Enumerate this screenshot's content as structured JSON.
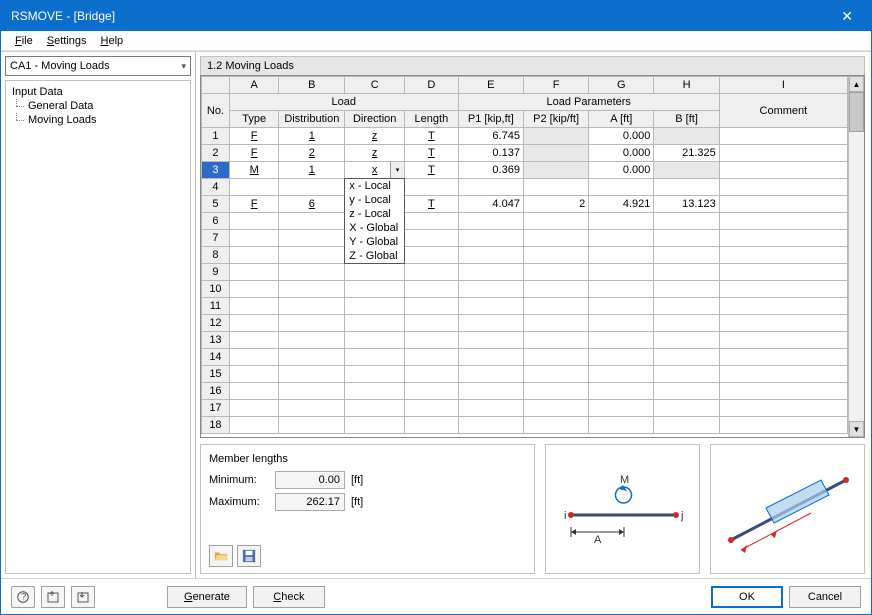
{
  "window": {
    "title": "RSMOVE - [Bridge]"
  },
  "menubar": {
    "file": "File",
    "settings": "Settings",
    "help": "Help"
  },
  "sidebar": {
    "combo": "CA1 - Moving Loads",
    "tree": {
      "root": "Input Data",
      "children": [
        "General Data",
        "Moving Loads"
      ]
    }
  },
  "panel": {
    "title": "1.2 Moving Loads"
  },
  "grid": {
    "col_letters": [
      "A",
      "B",
      "C",
      "D",
      "E",
      "F",
      "G",
      "H",
      "I"
    ],
    "group_headers": {
      "no": "No.",
      "load": "Load",
      "load_params": "Load Parameters",
      "comment": "Comment"
    },
    "col_headers": [
      "Type",
      "Distribution",
      "Direction",
      "Length",
      "P1 [kip,ft]",
      "P2 [kip/ft]",
      "A [ft]",
      "B [ft]",
      "Comment"
    ],
    "row_count": 18,
    "selected_row": 3,
    "rows": [
      {
        "type": "F",
        "dist": "1",
        "dir": "z",
        "len": "T",
        "p1": "6.745",
        "p2": "",
        "a": "0.000",
        "b": "",
        "comment": ""
      },
      {
        "type": "F",
        "dist": "2",
        "dir": "z",
        "len": "T",
        "p1": "0.137",
        "p2": "",
        "a": "0.000",
        "b": "21.325",
        "comment": ""
      },
      {
        "type": "M",
        "dist": "1",
        "dir": "x",
        "len": "T",
        "p1": "0.369",
        "p2": "",
        "a": "0.000",
        "b": "",
        "comment": ""
      },
      {},
      {
        "type": "F",
        "dist": "6",
        "dir": "",
        "len": "T",
        "p1": "4.047",
        "p2": "2",
        "a": "4.921",
        "b": "13.123",
        "comment": ""
      }
    ],
    "dropdown": {
      "open_row": 3,
      "open_col": "C",
      "options": [
        "x - Local",
        "y - Local",
        "z - Local",
        "X - Global",
        "Y - Global",
        "Z - Global"
      ]
    }
  },
  "member_lengths": {
    "title": "Member lengths",
    "min_label": "Minimum:",
    "min_value": "0.00",
    "unit": "[ft]",
    "max_label": "Maximum:",
    "max_value": "262.17"
  },
  "footer": {
    "generate": "Generate",
    "check": "Check",
    "ok": "OK",
    "cancel": "Cancel"
  },
  "colors": {
    "accent": "#0b6dcc",
    "selected": "#2a6bc7"
  }
}
